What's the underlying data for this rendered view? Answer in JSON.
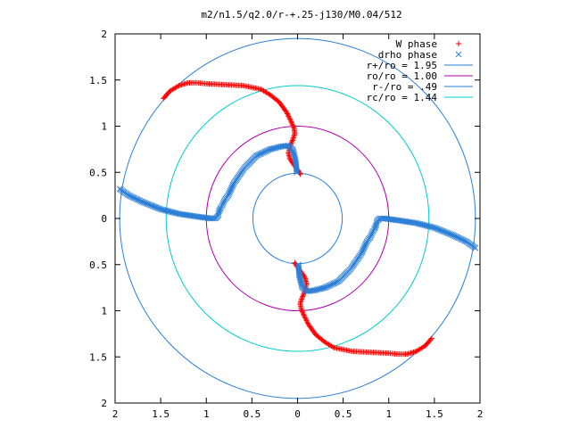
{
  "chart_data": {
    "type": "scatter",
    "title": "m2/n1.5/q2.0/r-+.25-j130/M0.04/512",
    "xlabel": "",
    "ylabel": "",
    "xlim": [
      -2,
      2
    ],
    "ylim": [
      -2,
      2
    ],
    "x_tick_labels": [
      "2",
      "1.5",
      "1",
      "0.5",
      "0",
      "0.5",
      "1",
      "1.5",
      "2"
    ],
    "y_tick_labels": [
      "2",
      "1.5",
      "1",
      "0.5",
      "0",
      "0.5",
      "1",
      "1.5",
      "2"
    ],
    "grid": false,
    "legend_position": "top-right",
    "colors": {
      "w_phase": "#ff0000",
      "drho_phase": "#2b7fd6",
      "r_plus": "#2b7fd6",
      "ro": "#b000b0",
      "r_minus": "#2b7fd6",
      "rc": "#00cccc"
    },
    "series": [
      {
        "name": "W phase",
        "marker": "plus",
        "x": [
          -1.47,
          -1.4,
          -1.3,
          -1.2,
          -1.1,
          -1.0,
          -0.8,
          -0.6,
          -0.4,
          -0.3,
          -0.2,
          -0.12,
          -0.07,
          -0.04,
          -0.03,
          -0.05,
          -0.08,
          -0.1,
          -0.08,
          -0.04,
          0.0,
          0.03
        ],
        "y": [
          1.3,
          1.38,
          1.44,
          1.47,
          1.47,
          1.46,
          1.45,
          1.44,
          1.4,
          1.34,
          1.26,
          1.15,
          1.05,
          0.98,
          0.92,
          0.86,
          0.79,
          0.71,
          0.64,
          0.58,
          0.53,
          0.48
        ]
      },
      {
        "name": "W phase",
        "marker": "plus",
        "x": [
          -0.03,
          0.0,
          0.04,
          0.08,
          0.1,
          0.08,
          0.05,
          0.03,
          0.04,
          0.07,
          0.12,
          0.2,
          0.3,
          0.4,
          0.6,
          0.8,
          1.0,
          1.1,
          1.2,
          1.3,
          1.4,
          1.47
        ],
        "y": [
          -0.48,
          -0.53,
          -0.58,
          -0.64,
          -0.71,
          -0.79,
          -0.86,
          -0.92,
          -0.98,
          -1.05,
          -1.15,
          -1.26,
          -1.34,
          -1.4,
          -1.44,
          -1.45,
          -1.46,
          -1.47,
          -1.47,
          -1.44,
          -1.38,
          -1.3
        ]
      },
      {
        "name": "drho phase",
        "marker": "cross",
        "x": [
          -1.95,
          -1.85,
          -1.7,
          -1.5,
          -1.3,
          -1.1,
          -0.95,
          -0.9,
          -0.87,
          -0.86,
          -0.84,
          -0.82,
          -0.8,
          -0.76,
          -0.7,
          -0.58,
          -0.45,
          -0.3,
          -0.18,
          -0.1,
          -0.05,
          -0.02,
          -0.01
        ],
        "y": [
          0.32,
          0.25,
          0.18,
          0.1,
          0.05,
          0.02,
          0.0,
          0.0,
          0.03,
          0.08,
          0.12,
          0.15,
          0.2,
          0.25,
          0.38,
          0.55,
          0.68,
          0.75,
          0.78,
          0.79,
          0.74,
          0.62,
          0.5
        ]
      },
      {
        "name": "drho phase",
        "marker": "cross",
        "x": [
          1.95,
          1.85,
          1.7,
          1.5,
          1.3,
          1.1,
          0.95,
          0.9,
          0.87,
          0.86,
          0.84,
          0.82,
          0.8,
          0.76,
          0.7,
          0.58,
          0.45,
          0.3,
          0.18,
          0.1,
          0.05,
          0.02,
          0.01
        ],
        "y": [
          -0.32,
          -0.25,
          -0.18,
          -0.1,
          -0.05,
          -0.02,
          0.0,
          0.0,
          -0.03,
          -0.08,
          -0.12,
          -0.15,
          -0.2,
          -0.25,
          -0.38,
          -0.55,
          -0.68,
          -0.75,
          -0.78,
          -0.79,
          -0.74,
          -0.62,
          -0.5
        ]
      }
    ],
    "legend": [
      {
        "label": "W phase",
        "key": "w_phase",
        "style": "plus"
      },
      {
        "label": "drho phase",
        "key": "drho_phase",
        "style": "cross"
      },
      {
        "label": "r+/ro = 1.95",
        "key": "r_plus",
        "style": "line"
      },
      {
        "label": "ro/ro = 1.00",
        "key": "ro",
        "style": "line"
      },
      {
        "label": "r-/ro = .49",
        "key": "r_minus",
        "style": "line"
      },
      {
        "label": "rc/ro = 1.44",
        "key": "rc",
        "style": "line"
      }
    ],
    "circles": [
      {
        "label": "r+/ro = 1.95",
        "r": 1.95,
        "key": "r_plus"
      },
      {
        "label": "ro/ro = 1.00",
        "r": 1.0,
        "key": "ro"
      },
      {
        "label": "r-/ro = .49",
        "r": 0.49,
        "key": "r_minus"
      },
      {
        "label": "rc/ro = 1.44",
        "r": 1.44,
        "key": "rc"
      }
    ]
  }
}
